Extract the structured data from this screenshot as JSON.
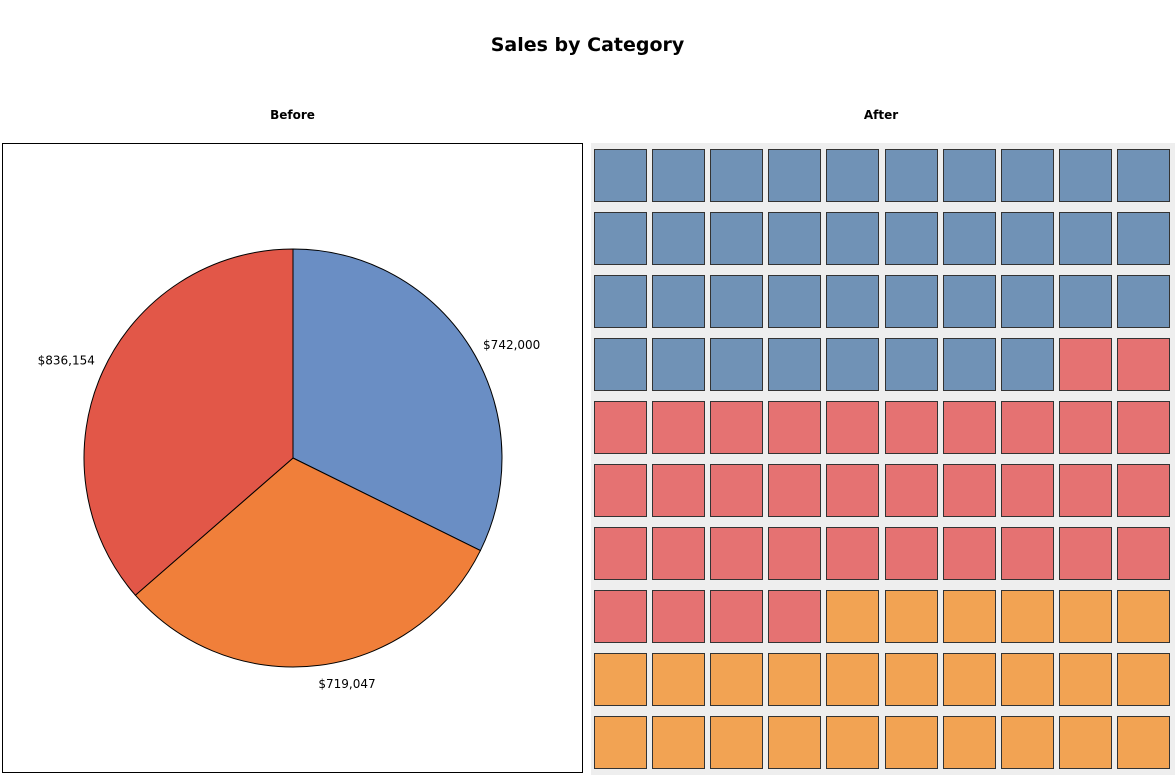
{
  "title": "Sales by Category",
  "chart_data": [
    {
      "type": "pie",
      "title": "Before",
      "slices": [
        {
          "label": "$742,000",
          "value": 742000,
          "color": "#6a8ec4"
        },
        {
          "label": "$719,047",
          "value": 719047,
          "color": "#f07f3a"
        },
        {
          "label": "$836,154",
          "value": 836154,
          "color": "#e25748"
        }
      ]
    },
    {
      "type": "heatmap",
      "title": "After",
      "rows": 10,
      "cols": 10,
      "series": [
        {
          "count": 38,
          "color": "#7092b6"
        },
        {
          "count": 36,
          "color": "#e57272"
        },
        {
          "count": 26,
          "color": "#f2a353"
        }
      ]
    }
  ]
}
